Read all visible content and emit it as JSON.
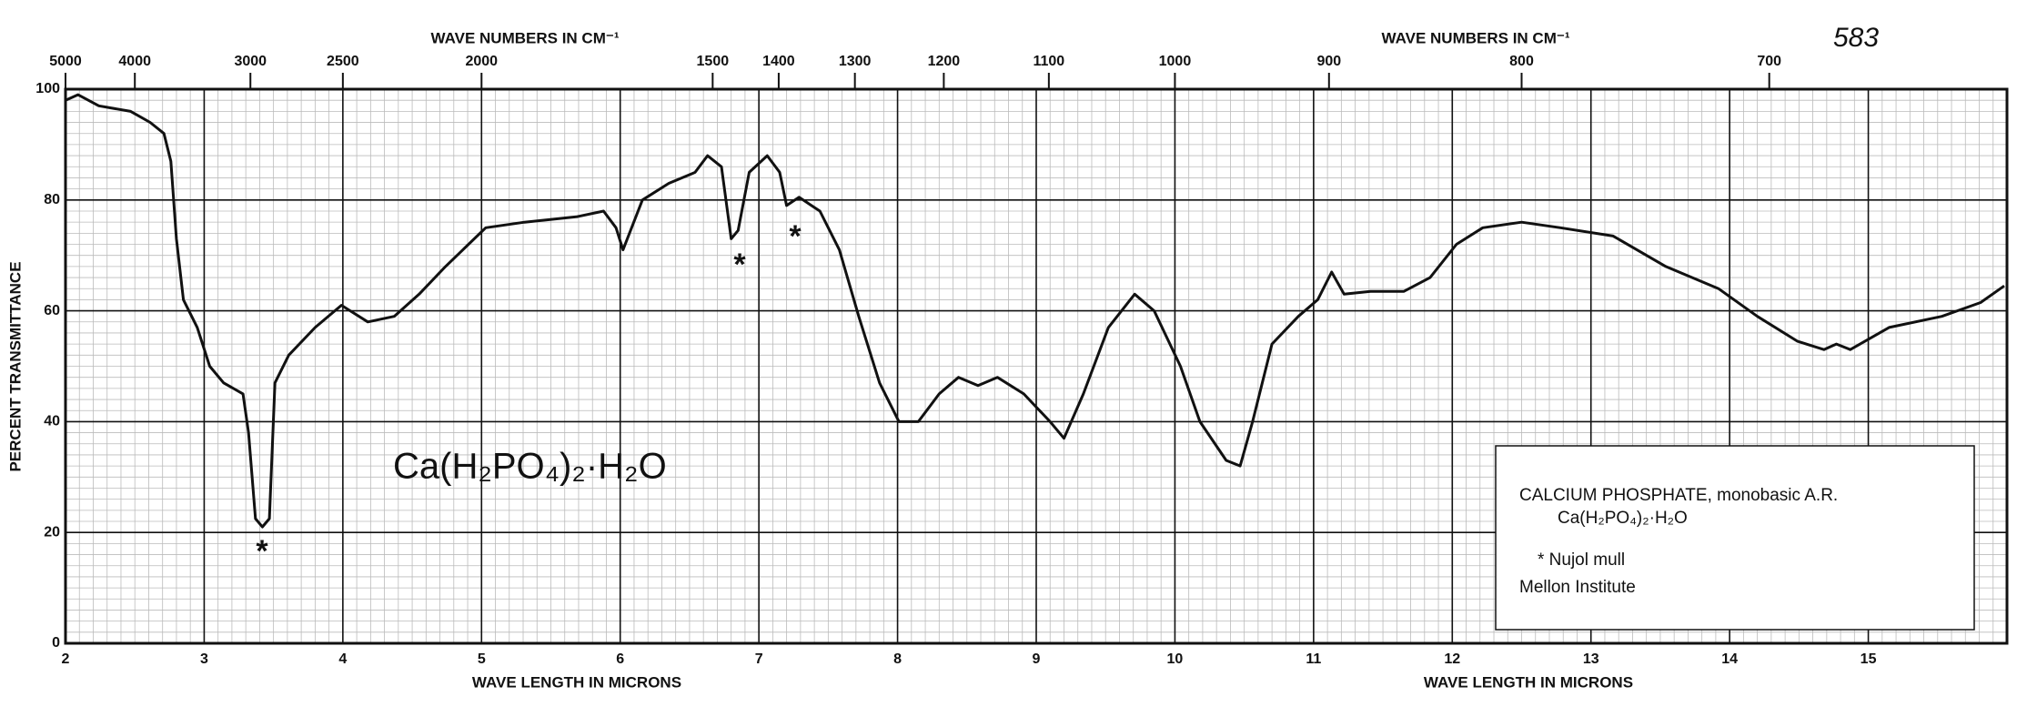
{
  "chart_data": {
    "type": "line",
    "title_top_left": "WAVE NUMBERS IN CM⁻¹",
    "title_top_right": "WAVE NUMBERS IN CM⁻¹",
    "xlabel_left": "WAVE LENGTH IN MICRONS",
    "xlabel_right": "WAVE LENGTH IN MICRONS",
    "ylabel": "PERCENT TRANSMITTANCE",
    "page_number": "583",
    "formula": "Ca(H₂PO₄)₂·H₂O",
    "asterisks": [
      "*",
      "*",
      "*"
    ],
    "legend_lines": [
      "CALCIUM PHOSPHATE, monobasic   A.R.",
      "Ca(H₂PO₄)₂·H₂O",
      "* Nujol mull",
      "Mellon Institute"
    ],
    "xlim": [
      2,
      16
    ],
    "xticks": [
      2,
      3,
      4,
      5,
      6,
      7,
      8,
      9,
      10,
      11,
      12,
      13,
      14,
      15
    ],
    "x2lim": [
      5000,
      625
    ],
    "x2scale": "reciprocal",
    "x2ticks": [
      5000,
      4000,
      3000,
      2500,
      2000,
      1500,
      1400,
      1300,
      1200,
      1100,
      1000,
      900,
      800,
      700
    ],
    "ylim": [
      0,
      100
    ],
    "yticks": [
      0,
      20,
      40,
      60,
      80,
      100
    ],
    "grid": true,
    "series": [
      {
        "name": "Calcium phosphate, monobasic",
        "color": "#111111",
        "x": [
          2.0,
          2.09,
          2.24,
          2.47,
          2.61,
          2.71,
          2.76,
          2.8,
          2.85,
          2.95,
          3.04,
          3.14,
          3.28,
          3.32,
          3.37,
          3.42,
          3.47,
          3.51,
          3.61,
          3.8,
          3.99,
          4.18,
          4.37,
          4.55,
          4.74,
          5.03,
          5.31,
          5.69,
          5.88,
          5.97,
          6.02,
          6.16,
          6.35,
          6.54,
          6.63,
          6.73,
          6.8,
          6.85,
          6.93,
          7.06,
          7.15,
          7.2,
          7.29,
          7.44,
          7.58,
          7.72,
          7.87,
          8.01,
          8.15,
          8.3,
          8.44,
          8.58,
          8.72,
          8.91,
          9.1,
          9.2,
          9.34,
          9.52,
          9.71,
          9.85,
          10.04,
          10.18,
          10.37,
          10.47,
          10.56,
          10.7,
          10.89,
          11.03,
          11.13,
          11.22,
          11.41,
          11.65,
          11.84,
          12.03,
          12.22,
          12.5,
          12.78,
          13.16,
          13.54,
          13.92,
          14.2,
          14.49,
          14.68,
          14.77,
          14.87,
          15.15,
          15.53,
          15.81,
          15.98
        ],
        "values": [
          98,
          99,
          97,
          96,
          94,
          92,
          87,
          73,
          62,
          57,
          50,
          47,
          45,
          38,
          22.5,
          21,
          22.5,
          47,
          52,
          57,
          61,
          58,
          59,
          63,
          68,
          75,
          76,
          77,
          78,
          75,
          71,
          80,
          83,
          85,
          88,
          86,
          73,
          74.5,
          85,
          88,
          85,
          79,
          80.5,
          78,
          71,
          59,
          47,
          40,
          40,
          45,
          48,
          46.5,
          48,
          45,
          40,
          37,
          45,
          57,
          63,
          60,
          50,
          40,
          33,
          32,
          40,
          54,
          59,
          62,
          67,
          63,
          63.5,
          63.5,
          66,
          72,
          75,
          76,
          75,
          73.5,
          68,
          64,
          59,
          54.5,
          53,
          54,
          53,
          57,
          59,
          61.5,
          64.5
        ]
      }
    ]
  }
}
